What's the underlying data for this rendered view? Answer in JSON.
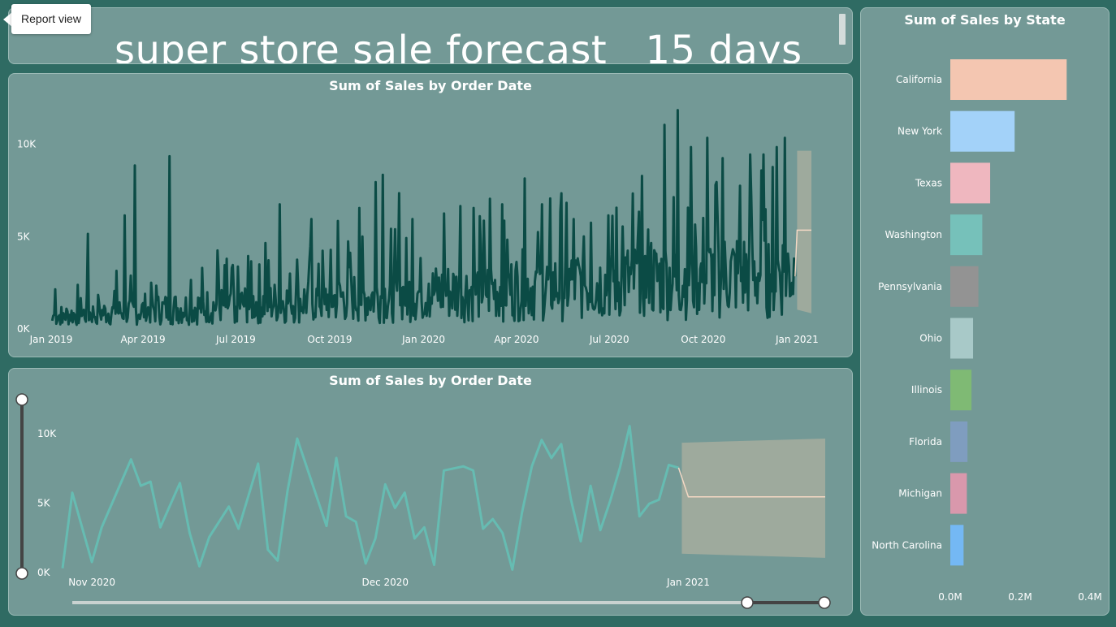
{
  "tooltip": {
    "label": "Report view"
  },
  "title": {
    "text": "super store sale forecast   15 days"
  },
  "colors": {
    "background": "#2f6b63",
    "card": "#739996",
    "line_dark": "#0b4b45",
    "line_teal": "#66bcb2",
    "forecast_band": "#a6ad9f",
    "forecast_line": "#f4d8c4"
  },
  "chart_data": [
    {
      "type": "line",
      "title": "Sum of Sales by Order Date",
      "x_ticks": [
        "Jan 2019",
        "Apr 2019",
        "Jul 2019",
        "Oct 2019",
        "Jan 2020",
        "Apr 2020",
        "Jul 2020",
        "Oct 2020",
        "Jan 2021"
      ],
      "y_ticks": [
        "0K",
        "5K",
        "10K"
      ],
      "ylim": [
        0,
        12000
      ],
      "xlim": [
        "2019-01-01",
        "2021-01-15"
      ],
      "series": [
        {
          "start": "2019-01-02",
          "end": "2020-12-30",
          "anchors": [
            [
              "2019-01-02",
              400
            ],
            [
              "2019-01-05",
              2100
            ],
            [
              "2019-01-12",
              300
            ],
            [
              "2019-02-06",
              5100
            ],
            [
              "2019-02-14",
              300
            ],
            [
              "2019-03-06",
              3100
            ],
            [
              "2019-03-14",
              6100
            ],
            [
              "2019-03-24",
              8800
            ],
            [
              "2019-04-04",
              400
            ],
            [
              "2019-04-14",
              2300
            ],
            [
              "2019-04-27",
              9300
            ],
            [
              "2019-05-18",
              2600
            ],
            [
              "2019-06-13",
              4200
            ],
            [
              "2019-06-30",
              300
            ],
            [
              "2019-07-13",
              3900
            ],
            [
              "2019-07-30",
              4600
            ],
            [
              "2019-08-13",
              6700
            ],
            [
              "2019-08-30",
              3700
            ],
            [
              "2019-09-13",
              5900
            ],
            [
              "2019-09-26",
              1300
            ],
            [
              "2019-10-09",
              5800
            ],
            [
              "2019-10-20",
              3300
            ],
            [
              "2019-10-30",
              6500
            ],
            [
              "2019-11-15",
              7900
            ],
            [
              "2019-11-22",
              8300
            ],
            [
              "2019-12-08",
              7300
            ],
            [
              "2019-12-21",
              5900
            ],
            [
              "2020-01-06",
              2400
            ],
            [
              "2020-01-21",
              6200
            ],
            [
              "2020-02-06",
              6600
            ],
            [
              "2020-02-19",
              6500
            ],
            [
              "2020-03-06",
              7000
            ],
            [
              "2020-03-18",
              6700
            ],
            [
              "2020-04-09",
              8100
            ],
            [
              "2020-04-26",
              6700
            ],
            [
              "2020-05-14",
              6300
            ],
            [
              "2020-05-27",
              5900
            ],
            [
              "2020-06-13",
              5700
            ],
            [
              "2020-06-30",
              6100
            ],
            [
              "2020-07-14",
              5500
            ],
            [
              "2020-07-30",
              6300
            ],
            [
              "2020-08-11",
              4600
            ],
            [
              "2020-08-24",
              11000
            ],
            [
              "2020-09-06",
              11800
            ],
            [
              "2020-09-19",
              9800
            ],
            [
              "2020-10-05",
              10300
            ],
            [
              "2020-10-20",
              9200
            ],
            [
              "2020-11-06",
              7700
            ],
            [
              "2020-11-16",
              9400
            ],
            [
              "2020-11-29",
              9400
            ],
            [
              "2020-12-12",
              9800
            ],
            [
              "2020-12-20",
              10300
            ],
            [
              "2020-12-30",
              2800
            ]
          ]
        }
      ],
      "forecast": {
        "start": "2021-01-01",
        "end": "2021-01-15",
        "value": 5300,
        "upper": [
          9600,
          9600
        ],
        "lower": [
          1000,
          800
        ]
      }
    },
    {
      "type": "line",
      "title": "Sum of Sales by Order Date",
      "x_ticks": [
        "Nov 2020",
        "Dec 2020",
        "Jan 2021"
      ],
      "y_ticks": [
        "0K",
        "5K",
        "10K"
      ],
      "ylim": [
        0,
        12000
      ],
      "xlim": [
        "2020-10-29",
        "2021-01-15"
      ],
      "series": [
        {
          "x": [
            "2020-10-29",
            "2020-10-30",
            "2020-11-01",
            "2020-11-02",
            "2020-11-05",
            "2020-11-06",
            "2020-11-07",
            "2020-11-08",
            "2020-11-10",
            "2020-11-11",
            "2020-11-12",
            "2020-11-13",
            "2020-11-15",
            "2020-11-16",
            "2020-11-18",
            "2020-11-19",
            "2020-11-20",
            "2020-11-21",
            "2020-11-22",
            "2020-11-25",
            "2020-11-26",
            "2020-11-27",
            "2020-11-28",
            "2020-11-29",
            "2020-11-30",
            "2020-12-01",
            "2020-12-02",
            "2020-12-03",
            "2020-12-04",
            "2020-12-05",
            "2020-12-06",
            "2020-12-07",
            "2020-12-09",
            "2020-12-10",
            "2020-12-11",
            "2020-12-12",
            "2020-12-13",
            "2020-12-14",
            "2020-12-15",
            "2020-12-16",
            "2020-12-17",
            "2020-12-18",
            "2020-12-19",
            "2020-12-20",
            "2020-12-21",
            "2020-12-22",
            "2020-12-23",
            "2020-12-24",
            "2020-12-25",
            "2020-12-26",
            "2020-12-27",
            "2020-12-28",
            "2020-12-29",
            "2020-12-30",
            "2020-12-31"
          ],
          "values": [
            250,
            5700,
            700,
            3200,
            8100,
            6200,
            6500,
            3200,
            6400,
            2800,
            400,
            2500,
            4700,
            3100,
            7800,
            1600,
            800,
            5800,
            9600,
            3300,
            8200,
            4000,
            3600,
            600,
            2400,
            6300,
            4600,
            5700,
            2400,
            3200,
            500,
            7300,
            7600,
            7300,
            3100,
            3800,
            2800,
            150,
            4300,
            7600,
            9500,
            8200,
            9200,
            5200,
            2200,
            6200,
            3000,
            5100,
            7500,
            10500,
            4000,
            4900,
            5200,
            7700,
            7500
          ]
        }
      ],
      "forecast": {
        "start": "2021-01-01",
        "end": "2021-01-15",
        "value": 5400,
        "upper": [
          9300,
          9600
        ],
        "lower": [
          1300,
          1000
        ]
      }
    },
    {
      "type": "bar",
      "orientation": "horizontal",
      "title": "Sum of Sales by State",
      "categories": [
        "California",
        "New York",
        "Texas",
        "Washington",
        "Pennsylvania",
        "Ohio",
        "Illinois",
        "Florida",
        "Michigan",
        "North Carolina"
      ],
      "values": [
        0.3332,
        0.1842,
        0.1141,
        0.0916,
        0.0805,
        0.0652,
        0.0607,
        0.0492,
        0.0473,
        0.038
      ],
      "bar_colors": [
        "#f4c6b1",
        "#a3d2f9",
        "#efb7bf",
        "#76c1ba",
        "#939393",
        "#a8c9c8",
        "#7fba74",
        "#7f9dbf",
        "#d998ac",
        "#74b8f4"
      ],
      "x_ticks": [
        "0.0M",
        "0.2M",
        "0.4M"
      ],
      "xlim": [
        0,
        0.4
      ]
    }
  ]
}
